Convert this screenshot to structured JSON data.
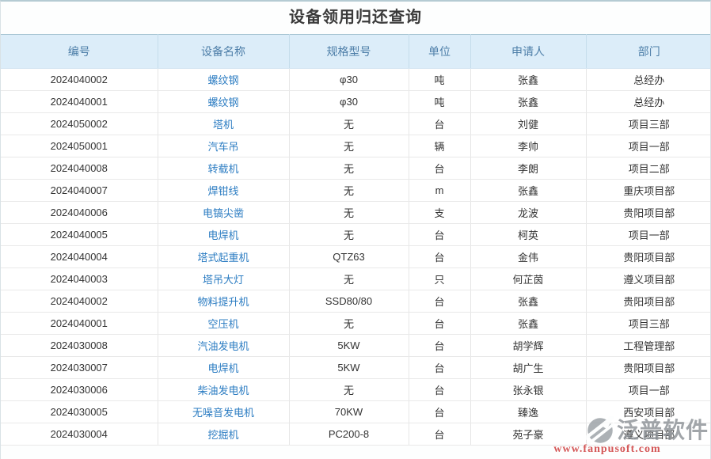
{
  "page": {
    "title": "设备领用归还查询"
  },
  "table": {
    "columns": [
      {
        "key": "id",
        "label": "编号"
      },
      {
        "key": "name",
        "label": "设备名称"
      },
      {
        "key": "spec",
        "label": "规格型号"
      },
      {
        "key": "unit",
        "label": "单位"
      },
      {
        "key": "applicant",
        "label": "申请人"
      },
      {
        "key": "department",
        "label": "部门"
      }
    ],
    "rows": [
      {
        "id": "2024040002",
        "name": "螺纹钢",
        "spec": "φ30",
        "unit": "吨",
        "applicant": "张鑫",
        "department": "总经办"
      },
      {
        "id": "2024040001",
        "name": "螺纹钢",
        "spec": "φ30",
        "unit": "吨",
        "applicant": "张鑫",
        "department": "总经办"
      },
      {
        "id": "2024050002",
        "name": "塔机",
        "spec": "无",
        "unit": "台",
        "applicant": "刘健",
        "department": "项目三部"
      },
      {
        "id": "2024050001",
        "name": "汽车吊",
        "spec": "无",
        "unit": "辆",
        "applicant": "李帅",
        "department": "项目一部"
      },
      {
        "id": "2024040008",
        "name": "转载机",
        "spec": "无",
        "unit": "台",
        "applicant": "李朗",
        "department": "项目二部"
      },
      {
        "id": "2024040007",
        "name": "焊钳线",
        "spec": "无",
        "unit": "m",
        "applicant": "张鑫",
        "department": "重庆项目部"
      },
      {
        "id": "2024040006",
        "name": "电镐尖凿",
        "spec": "无",
        "unit": "支",
        "applicant": "龙波",
        "department": "贵阳项目部"
      },
      {
        "id": "2024040005",
        "name": "电焊机",
        "spec": "无",
        "unit": "台",
        "applicant": "柯英",
        "department": "项目一部"
      },
      {
        "id": "2024040004",
        "name": "塔式起重机",
        "spec": "QTZ63",
        "unit": "台",
        "applicant": "金伟",
        "department": "贵阳项目部"
      },
      {
        "id": "2024040003",
        "name": "塔吊大灯",
        "spec": "无",
        "unit": "只",
        "applicant": "何芷茵",
        "department": "遵义项目部"
      },
      {
        "id": "2024040002",
        "name": "物料提升机",
        "spec": "SSD80/80",
        "unit": "台",
        "applicant": "张鑫",
        "department": "贵阳项目部"
      },
      {
        "id": "2024040001",
        "name": "空压机",
        "spec": "无",
        "unit": "台",
        "applicant": "张鑫",
        "department": "项目三部"
      },
      {
        "id": "2024030008",
        "name": "汽油发电机",
        "spec": "5KW",
        "unit": "台",
        "applicant": "胡学辉",
        "department": "工程管理部"
      },
      {
        "id": "2024030007",
        "name": "电焊机",
        "spec": "5KW",
        "unit": "台",
        "applicant": "胡广生",
        "department": "贵阳项目部"
      },
      {
        "id": "2024030006",
        "name": "柴油发电机",
        "spec": "无",
        "unit": "台",
        "applicant": "张永银",
        "department": "项目一部"
      },
      {
        "id": "2024030005",
        "name": "无噪音发电机",
        "spec": "70KW",
        "unit": "台",
        "applicant": "臻逸",
        "department": "西安项目部"
      },
      {
        "id": "2024030004",
        "name": "挖掘机",
        "spec": "PC200-8",
        "unit": "台",
        "applicant": "苑子豪",
        "department": "遵义项目部"
      }
    ]
  },
  "watermark": {
    "brand": "泛普软件",
    "url": "www.fanpusoft.com"
  },
  "colors": {
    "header_bg": "#dcedf9",
    "header_text": "#4d7ea8",
    "link": "#2b7cc2",
    "body_text": "#333333",
    "border": "#e9e9e9",
    "top_line": "#b5cbd3",
    "watermark_brand": "#8d9297",
    "watermark_url": "#cc3333"
  }
}
